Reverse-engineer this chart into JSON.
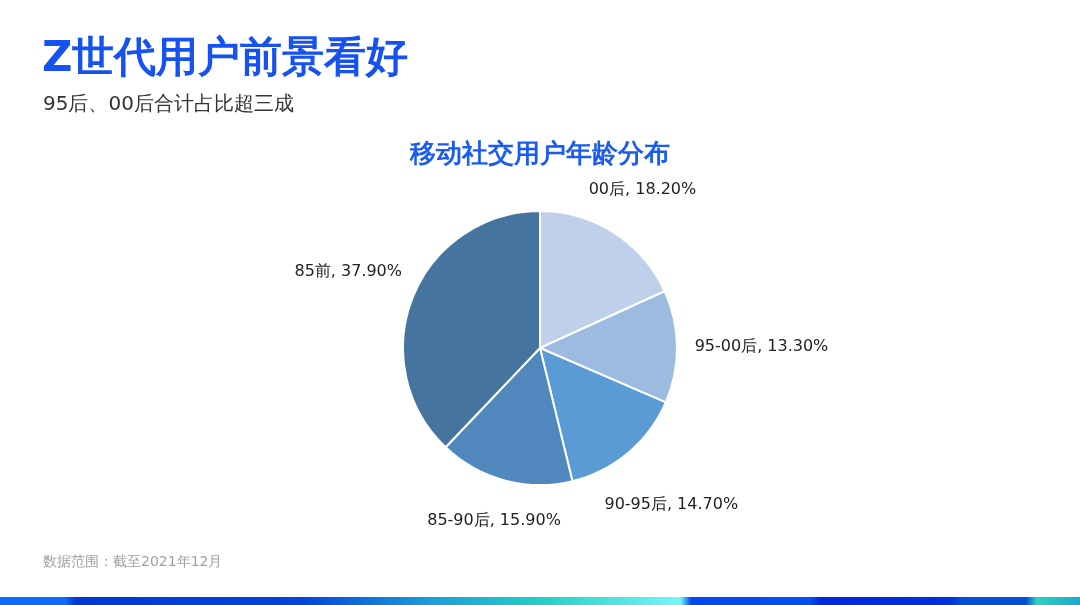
{
  "chart_data": {
    "type": "pie",
    "title": "Z世代用户前景看好",
    "subtitle": "95后、00后合计占比超三成",
    "categories": [
      "00后",
      "95-00后",
      "90-95后",
      "85-90后",
      "85前"
    ],
    "values": [
      18.2,
      13.3,
      14.7,
      15.9,
      37.9
    ],
    "value_labels": [
      "18.20%",
      "13.30%",
      "14.70%",
      "15.90%",
      "37.90%"
    ],
    "colors": [
      "#bfd1ea",
      "#9bbbe1",
      "#5b9bd5",
      "#5087bd",
      "#45759f"
    ],
    "annotations": [
      "移动社交用户年龄分布",
      "数据范围：截至2021年12月"
    ]
  }
}
